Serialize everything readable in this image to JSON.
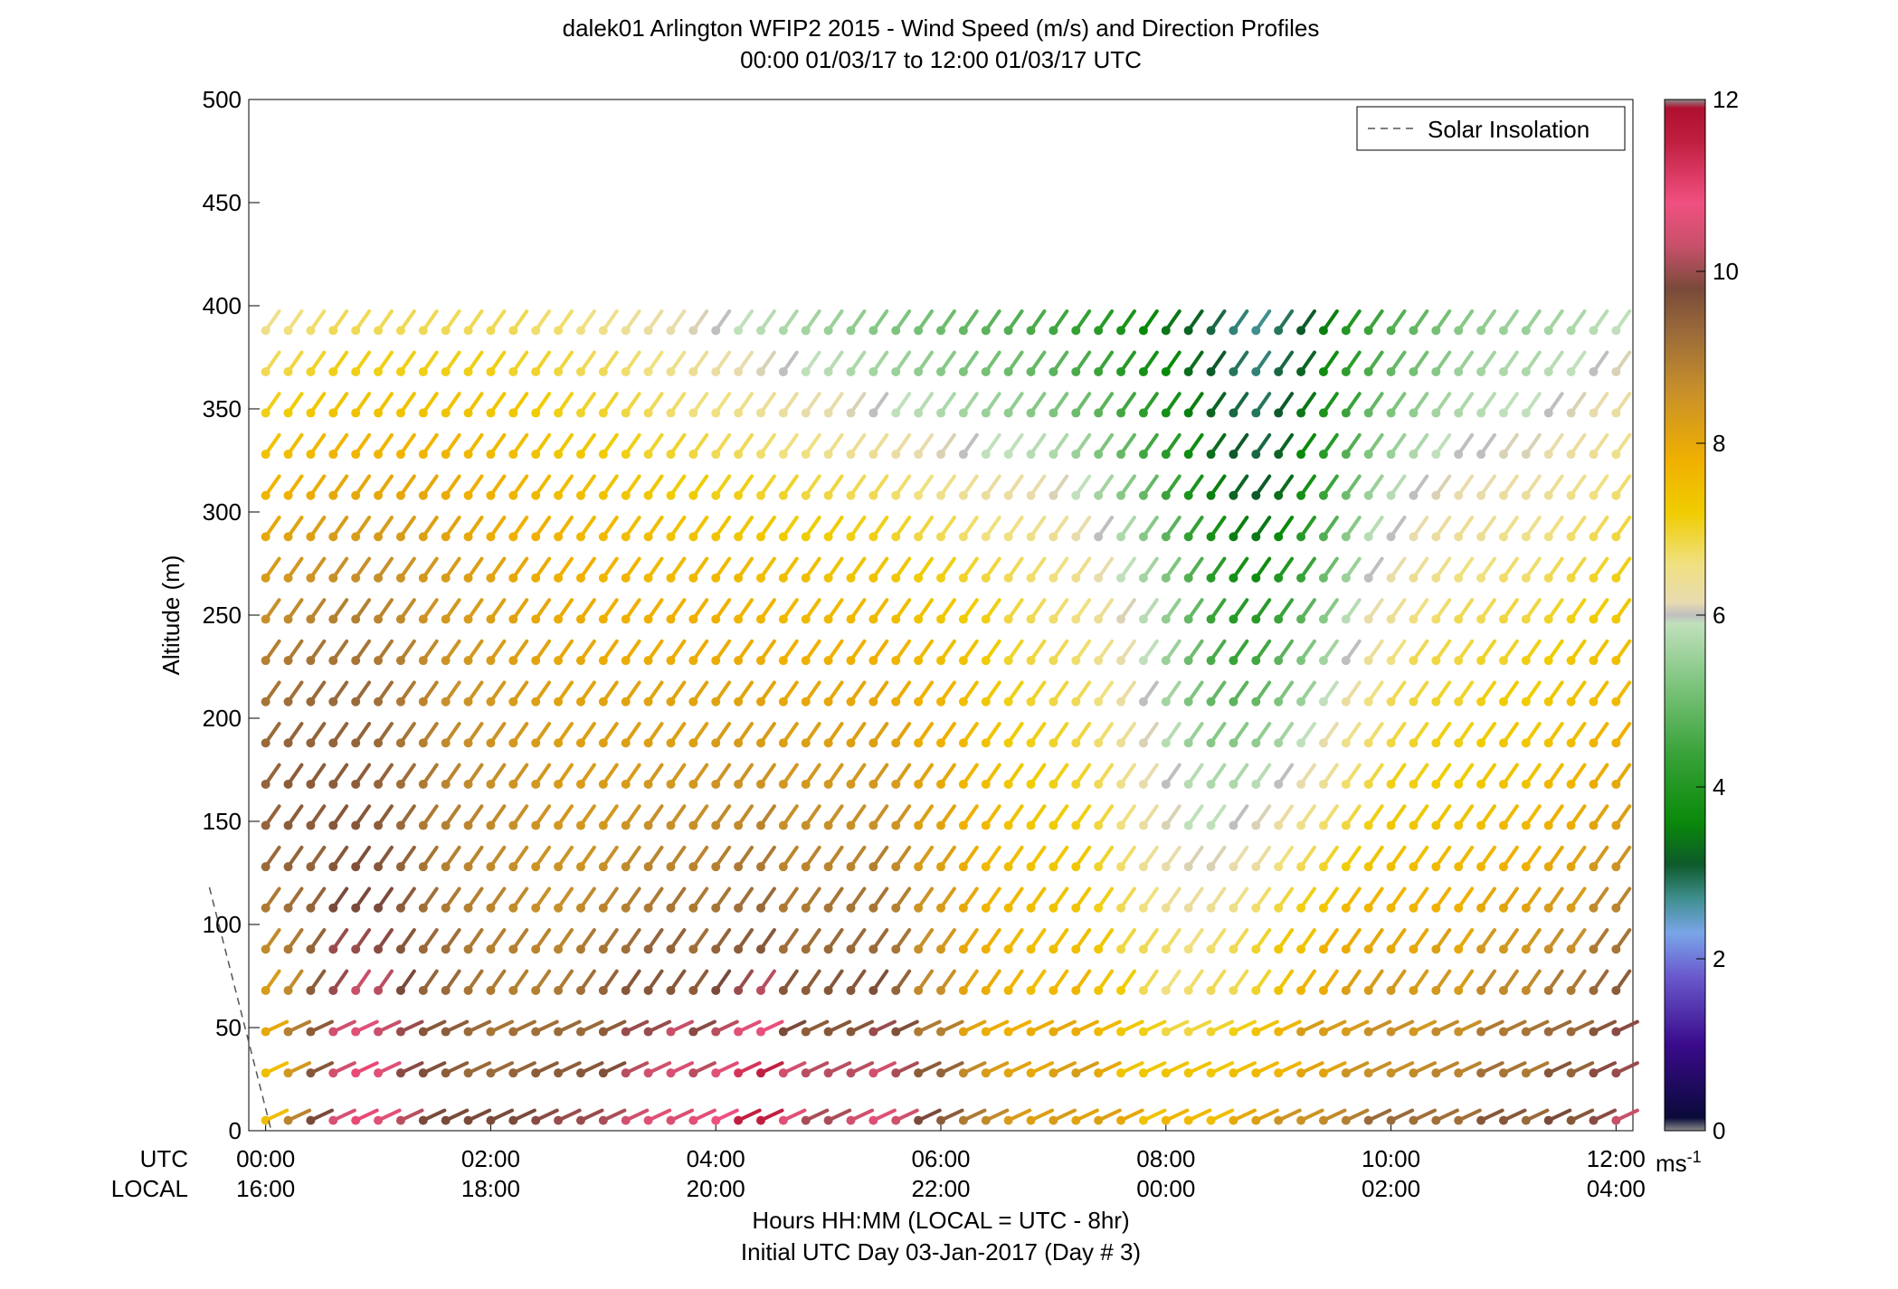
{
  "chart_data": {
    "type": "wind barb profile",
    "title": "dalek01 Arlington WFIP2 2015 - Wind Speed (m/s) and Direction Profiles",
    "subtitle": "00:00 01/03/17 to 12:00 01/03/17  UTC",
    "ylabel": "Altitude (m)",
    "xlabel": "Hours HH:MM  (LOCAL = UTC - 8hr)",
    "xlabel2": "Initial UTC Day 03-Jan-2017 (Day # 3)",
    "ylim": [
      0,
      500
    ],
    "xlim_hours": [
      -0.15,
      12.15
    ],
    "yticks": [
      0,
      50,
      100,
      150,
      200,
      250,
      300,
      350,
      400,
      450,
      500
    ],
    "xticks_hours": [
      0,
      2,
      4,
      6,
      8,
      10,
      12
    ],
    "xtick_labels_utc": [
      "00:00",
      "02:00",
      "04:00",
      "06:00",
      "08:00",
      "10:00",
      "12:00"
    ],
    "xtick_labels_local": [
      "16:00",
      "18:00",
      "20:00",
      "22:00",
      "00:00",
      "02:00",
      "04:00"
    ],
    "row_labels": {
      "utc": "UTC",
      "local": "LOCAL"
    },
    "legend": {
      "label": "Solar Insolation",
      "position": "top-right"
    },
    "solar_insolation_line": {
      "x_hours": [
        -0.5,
        0.05
      ],
      "y_m": [
        118,
        0
      ]
    },
    "colorbar": {
      "label": "ms",
      "label_exponent": "-1",
      "range": [
        0,
        12
      ],
      "ticks": [
        0,
        2,
        4,
        6,
        8,
        10,
        12
      ],
      "stops": [
        {
          "v": 0.0,
          "c": "#8c8c8c"
        },
        {
          "v": 0.15,
          "c": "#0a0a3a"
        },
        {
          "v": 1.0,
          "c": "#3a0a8c"
        },
        {
          "v": 1.8,
          "c": "#6a5acd"
        },
        {
          "v": 2.3,
          "c": "#7aa5e8"
        },
        {
          "v": 2.7,
          "c": "#3f8f8f"
        },
        {
          "v": 3.1,
          "c": "#0d5a2a"
        },
        {
          "v": 3.6,
          "c": "#0a8a0a"
        },
        {
          "v": 4.4,
          "c": "#3aa33a"
        },
        {
          "v": 5.2,
          "c": "#7ec47e"
        },
        {
          "v": 5.9,
          "c": "#c0e0bc"
        },
        {
          "v": 6.0,
          "c": "#bfbfbf"
        },
        {
          "v": 6.15,
          "c": "#e8dcb0"
        },
        {
          "v": 6.6,
          "c": "#f0e080"
        },
        {
          "v": 7.2,
          "c": "#f0cc00"
        },
        {
          "v": 7.8,
          "c": "#f0b000"
        },
        {
          "v": 8.6,
          "c": "#c8902a"
        },
        {
          "v": 9.3,
          "c": "#9a6a3a"
        },
        {
          "v": 9.8,
          "c": "#7a4a3a"
        },
        {
          "v": 10.3,
          "c": "#c8506a"
        },
        {
          "v": 10.8,
          "c": "#f05080"
        },
        {
          "v": 11.5,
          "c": "#c02040"
        },
        {
          "v": 11.9,
          "c": "#b01030"
        },
        {
          "v": 12.0,
          "c": "#8c8c8c"
        }
      ]
    },
    "altitudes_m": [
      5,
      28,
      48,
      68,
      88,
      108,
      128,
      148,
      168,
      188,
      208,
      228,
      248,
      268,
      288,
      308,
      328,
      348,
      368,
      388
    ],
    "speed_grid_ms": [
      [
        7.5,
        8.8,
        9.8,
        10.5,
        10.9,
        10.6,
        10.2,
        9.8,
        9.8,
        9.8,
        9.8,
        9.8,
        9.9,
        10.0,
        10.0,
        10.1,
        10.4,
        10.6,
        10.5,
        10.6,
        10.8,
        11.5,
        11.5,
        10.6,
        10.1,
        10.1,
        10.4,
        10.6,
        10.4,
        9.8,
        9.5,
        9.0,
        8.7,
        8.3,
        8.2,
        8.3,
        8.1,
        8.2,
        8.0,
        7.4,
        7.7,
        7.6,
        7.5,
        8.0,
        8.2,
        8.5,
        8.5,
        8.7,
        8.9,
        9.3,
        9.3,
        9.2,
        9.2,
        9.2,
        9.6,
        9.6,
        9.3,
        9.8,
        9.6,
        9.9,
        10.3
      ],
      [
        7.5,
        8.4,
        9.6,
        10.4,
        10.9,
        10.6,
        9.9,
        9.7,
        9.5,
        9.3,
        9.3,
        9.4,
        9.5,
        9.5,
        9.6,
        9.7,
        10.2,
        10.4,
        10.5,
        10.2,
        10.6,
        11.2,
        11.5,
        10.4,
        10.2,
        10.2,
        10.2,
        10.4,
        10.1,
        9.5,
        9.4,
        8.7,
        8.3,
        8.1,
        8.0,
        8.2,
        8.3,
        8.0,
        7.4,
        7.3,
        7.4,
        7.4,
        7.3,
        7.5,
        7.6,
        7.7,
        8.1,
        8.1,
        8.5,
        8.6,
        8.6,
        8.7,
        8.8,
        8.8,
        9.2,
        9.1,
        9.0,
        9.6,
        9.4,
        9.9,
        10.0
      ],
      [
        8.0,
        8.9,
        9.5,
        10.4,
        10.6,
        10.3,
        10.0,
        9.6,
        9.5,
        9.3,
        9.1,
        9.2,
        9.2,
        9.3,
        9.3,
        9.5,
        10.0,
        10.0,
        10.3,
        9.9,
        10.2,
        10.6,
        10.7,
        9.8,
        9.5,
        9.6,
        9.6,
        10.0,
        9.7,
        9.0,
        8.9,
        8.1,
        7.9,
        7.8,
        7.9,
        8.0,
        7.9,
        7.6,
        7.3,
        7.1,
        6.9,
        6.9,
        7.0,
        7.1,
        7.4,
        7.7,
        8.3,
        8.3,
        8.3,
        8.6,
        8.6,
        8.4,
        8.7,
        8.6,
        9.0,
        9.0,
        9.1,
        9.3,
        9.3,
        9.6,
        9.9
      ],
      [
        8.3,
        8.7,
        9.5,
        10.0,
        10.3,
        10.2,
        9.8,
        9.4,
        9.3,
        9.1,
        9.0,
        8.9,
        8.9,
        9.0,
        9.2,
        9.4,
        9.6,
        9.6,
        9.6,
        9.5,
        9.8,
        10.0,
        10.2,
        9.6,
        9.5,
        9.6,
        9.6,
        9.7,
        9.4,
        8.7,
        8.6,
        8.1,
        7.9,
        7.7,
        7.5,
        7.6,
        7.7,
        7.4,
        7.2,
        6.8,
        6.6,
        6.7,
        6.8,
        6.8,
        7.0,
        7.4,
        7.7,
        7.9,
        8.2,
        8.3,
        8.4,
        8.3,
        8.4,
        8.3,
        8.7,
        8.7,
        8.7,
        9.0,
        9.0,
        9.3,
        9.5
      ],
      [
        8.7,
        9.0,
        9.4,
        10.0,
        10.0,
        9.9,
        9.6,
        9.3,
        9.2,
        9.0,
        8.9,
        8.9,
        8.8,
        8.8,
        9.0,
        9.1,
        9.2,
        9.4,
        9.4,
        9.2,
        9.4,
        9.5,
        9.6,
        9.2,
        9.2,
        9.3,
        9.3,
        9.3,
        9.1,
        8.6,
        8.4,
        8.0,
        7.8,
        7.6,
        7.5,
        7.5,
        7.5,
        7.3,
        6.9,
        6.8,
        6.7,
        6.6,
        6.7,
        6.8,
        7.0,
        7.3,
        7.4,
        7.8,
        7.9,
        8.0,
        8.0,
        8.0,
        8.2,
        8.0,
        8.4,
        8.4,
        8.4,
        8.6,
        8.6,
        9.0,
        9.1
      ],
      [
        9.0,
        9.2,
        9.4,
        9.8,
        9.8,
        9.8,
        9.5,
        9.2,
        9.0,
        8.9,
        8.8,
        8.7,
        8.6,
        8.6,
        8.7,
        8.8,
        8.9,
        9.0,
        9.1,
        9.0,
        9.1,
        9.2,
        9.3,
        9.0,
        9.0,
        9.1,
        9.1,
        9.1,
        8.9,
        8.5,
        8.3,
        8.0,
        7.7,
        7.6,
        7.5,
        7.4,
        7.4,
        7.1,
        6.8,
        6.6,
        6.4,
        6.3,
        6.4,
        6.5,
        6.7,
        6.9,
        7.1,
        7.3,
        7.6,
        7.7,
        7.7,
        7.7,
        7.8,
        7.8,
        8.0,
        8.1,
        8.1,
        8.3,
        8.3,
        8.7,
        8.8
      ],
      [
        9.3,
        9.4,
        9.4,
        9.6,
        9.7,
        9.6,
        9.4,
        9.1,
        8.9,
        8.8,
        8.7,
        8.6,
        8.5,
        8.5,
        8.5,
        8.6,
        8.7,
        8.8,
        8.8,
        8.8,
        8.9,
        9.0,
        9.0,
        8.8,
        8.8,
        8.8,
        8.8,
        8.9,
        8.7,
        8.3,
        8.2,
        7.9,
        7.6,
        7.5,
        7.4,
        7.3,
        7.3,
        7.0,
        6.7,
        6.4,
        6.2,
        6.1,
        6.1,
        6.2,
        6.3,
        6.6,
        6.8,
        7.0,
        7.2,
        7.4,
        7.5,
        7.5,
        7.6,
        7.6,
        7.7,
        7.8,
        7.8,
        8.0,
        8.1,
        8.4,
        8.5
      ],
      [
        9.4,
        9.5,
        9.5,
        9.6,
        9.6,
        9.5,
        9.3,
        9.0,
        8.9,
        8.8,
        8.7,
        8.6,
        8.5,
        8.4,
        8.4,
        8.4,
        8.5,
        8.6,
        8.6,
        8.6,
        8.7,
        8.7,
        8.8,
        8.6,
        8.6,
        8.6,
        8.6,
        8.6,
        8.5,
        8.2,
        8.1,
        7.8,
        7.6,
        7.4,
        7.3,
        7.2,
        7.1,
        6.9,
        6.6,
        6.3,
        6.1,
        5.9,
        5.9,
        6.0,
        6.1,
        6.3,
        6.5,
        6.7,
        6.9,
        7.1,
        7.3,
        7.3,
        7.4,
        7.4,
        7.5,
        7.6,
        7.6,
        7.8,
        7.9,
        8.1,
        8.2
      ],
      [
        9.4,
        9.5,
        9.5,
        9.5,
        9.5,
        9.4,
        9.2,
        9.0,
        8.8,
        8.7,
        8.6,
        8.5,
        8.4,
        8.3,
        8.3,
        8.3,
        8.3,
        8.4,
        8.4,
        8.4,
        8.5,
        8.5,
        8.5,
        8.4,
        8.4,
        8.4,
        8.4,
        8.4,
        8.3,
        8.1,
        8.0,
        7.7,
        7.5,
        7.3,
        7.2,
        7.1,
        7.0,
        6.8,
        6.5,
        6.2,
        6.0,
        5.8,
        5.7,
        5.7,
        5.8,
        6.0,
        6.2,
        6.4,
        6.7,
        6.9,
        7.1,
        7.1,
        7.2,
        7.2,
        7.3,
        7.4,
        7.4,
        7.6,
        7.7,
        7.9,
        8.0
      ],
      [
        9.3,
        9.4,
        9.4,
        9.4,
        9.4,
        9.3,
        9.1,
        8.9,
        8.7,
        8.6,
        8.5,
        8.4,
        8.3,
        8.2,
        8.2,
        8.2,
        8.2,
        8.2,
        8.2,
        8.2,
        8.3,
        8.3,
        8.3,
        8.2,
        8.2,
        8.2,
        8.2,
        8.2,
        8.1,
        7.9,
        7.8,
        7.6,
        7.4,
        7.2,
        7.1,
        7.0,
        6.9,
        6.7,
        6.4,
        6.1,
        5.8,
        5.5,
        5.3,
        5.3,
        5.4,
        5.6,
        5.9,
        6.2,
        6.5,
        6.7,
        6.9,
        7.0,
        7.1,
        7.1,
        7.2,
        7.3,
        7.3,
        7.4,
        7.5,
        7.7,
        7.8
      ],
      [
        9.1,
        9.2,
        9.3,
        9.3,
        9.3,
        9.2,
        9.0,
        8.8,
        8.6,
        8.5,
        8.4,
        8.3,
        8.2,
        8.1,
        8.1,
        8.1,
        8.1,
        8.1,
        8.1,
        8.1,
        8.1,
        8.1,
        8.1,
        8.0,
        8.0,
        8.0,
        8.0,
        8.0,
        7.9,
        7.8,
        7.7,
        7.5,
        7.3,
        7.1,
        7.0,
        6.9,
        6.8,
        6.6,
        6.3,
        6.0,
        5.6,
        5.2,
        4.9,
        4.8,
        4.9,
        5.2,
        5.5,
        5.9,
        6.3,
        6.6,
        6.8,
        6.9,
        7.0,
        7.0,
        7.1,
        7.2,
        7.2,
        7.3,
        7.4,
        7.5,
        7.6
      ],
      [
        8.9,
        9.0,
        9.1,
        9.1,
        9.1,
        9.0,
        8.9,
        8.7,
        8.5,
        8.4,
        8.3,
        8.2,
        8.1,
        8.0,
        8.0,
        7.9,
        7.9,
        7.9,
        7.9,
        7.9,
        7.9,
        7.9,
        7.9,
        7.8,
        7.8,
        7.8,
        7.8,
        7.8,
        7.7,
        7.6,
        7.5,
        7.4,
        7.2,
        7.0,
        6.9,
        6.8,
        6.7,
        6.5,
        6.2,
        5.9,
        5.5,
        5.0,
        4.6,
        4.4,
        4.5,
        4.8,
        5.2,
        5.6,
        6.0,
        6.4,
        6.6,
        6.8,
        6.9,
        6.9,
        7.0,
        7.0,
        7.1,
        7.2,
        7.3,
        7.4,
        7.5
      ],
      [
        8.6,
        8.7,
        8.8,
        8.9,
        8.9,
        8.8,
        8.7,
        8.5,
        8.4,
        8.3,
        8.2,
        8.1,
        8.0,
        7.9,
        7.9,
        7.8,
        7.8,
        7.8,
        7.8,
        7.8,
        7.8,
        7.7,
        7.7,
        7.6,
        7.6,
        7.6,
        7.6,
        7.6,
        7.5,
        7.4,
        7.3,
        7.2,
        7.1,
        6.9,
        6.8,
        6.7,
        6.6,
        6.4,
        6.1,
        5.8,
        5.4,
        4.9,
        4.4,
        4.1,
        4.1,
        4.4,
        4.8,
        5.3,
        5.8,
        6.2,
        6.4,
        6.6,
        6.7,
        6.8,
        6.8,
        6.9,
        6.9,
        7.0,
        7.1,
        7.2,
        7.3
      ],
      [
        8.3,
        8.4,
        8.5,
        8.6,
        8.6,
        8.6,
        8.5,
        8.4,
        8.3,
        8.2,
        8.1,
        8.0,
        7.9,
        7.8,
        7.8,
        7.7,
        7.7,
        7.6,
        7.6,
        7.6,
        7.6,
        7.6,
        7.5,
        7.5,
        7.5,
        7.4,
        7.4,
        7.4,
        7.3,
        7.2,
        7.1,
        7.0,
        6.9,
        6.8,
        6.7,
        6.6,
        6.5,
        6.2,
        5.9,
        5.6,
        5.2,
        4.7,
        4.1,
        3.8,
        3.7,
        4.0,
        4.4,
        5.0,
        5.5,
        6.0,
        6.2,
        6.4,
        6.5,
        6.6,
        6.6,
        6.7,
        6.7,
        6.8,
        6.9,
        7.0,
        7.1
      ],
      [
        8.0,
        8.1,
        8.2,
        8.3,
        8.3,
        8.3,
        8.3,
        8.2,
        8.1,
        8.0,
        7.9,
        7.8,
        7.8,
        7.7,
        7.6,
        7.6,
        7.5,
        7.5,
        7.4,
        7.4,
        7.4,
        7.3,
        7.3,
        7.2,
        7.2,
        7.2,
        7.1,
        7.1,
        7.0,
        6.9,
        6.8,
        6.7,
        6.6,
        6.6,
        6.5,
        6.4,
        6.2,
        6.0,
        5.7,
        5.3,
        4.8,
        4.3,
        3.8,
        3.5,
        3.4,
        3.6,
        4.1,
        4.7,
        5.3,
        5.8,
        6.0,
        6.2,
        6.3,
        6.4,
        6.4,
        6.5,
        6.5,
        6.6,
        6.7,
        6.8,
        6.9
      ],
      [
        7.7,
        7.8,
        7.9,
        8.0,
        8.0,
        8.0,
        8.0,
        8.0,
        7.9,
        7.8,
        7.8,
        7.7,
        7.6,
        7.5,
        7.5,
        7.4,
        7.3,
        7.3,
        7.2,
        7.2,
        7.1,
        7.1,
        7.0,
        7.0,
        6.9,
        6.9,
        6.8,
        6.8,
        6.7,
        6.6,
        6.5,
        6.4,
        6.3,
        6.3,
        6.2,
        6.1,
        5.9,
        5.6,
        5.3,
        4.9,
        4.4,
        3.9,
        3.5,
        3.2,
        3.1,
        3.3,
        3.8,
        4.4,
        5.0,
        5.5,
        5.8,
        6.0,
        6.1,
        6.2,
        6.2,
        6.3,
        6.3,
        6.4,
        6.5,
        6.6,
        6.7
      ],
      [
        7.4,
        7.5,
        7.6,
        7.7,
        7.7,
        7.7,
        7.7,
        7.7,
        7.7,
        7.6,
        7.6,
        7.5,
        7.4,
        7.3,
        7.3,
        7.2,
        7.1,
        7.0,
        7.0,
        6.9,
        6.8,
        6.8,
        6.7,
        6.6,
        6.6,
        6.5,
        6.4,
        6.4,
        6.3,
        6.2,
        6.1,
        6.0,
        5.9,
        5.9,
        5.8,
        5.7,
        5.5,
        5.2,
        4.9,
        4.5,
        4.1,
        3.7,
        3.3,
        3.1,
        3.0,
        3.2,
        3.6,
        4.1,
        4.7,
        5.2,
        5.5,
        5.7,
        5.9,
        6.0,
        6.0,
        6.1,
        6.1,
        6.2,
        6.3,
        6.4,
        6.5
      ],
      [
        7.1,
        7.2,
        7.3,
        7.4,
        7.4,
        7.4,
        7.4,
        7.4,
        7.4,
        7.4,
        7.3,
        7.3,
        7.2,
        7.1,
        7.0,
        7.0,
        6.9,
        6.8,
        6.7,
        6.6,
        6.6,
        6.5,
        6.4,
        6.3,
        6.2,
        6.2,
        6.1,
        6.0,
        5.9,
        5.8,
        5.7,
        5.6,
        5.5,
        5.4,
        5.3,
        5.2,
        5.0,
        4.8,
        4.5,
        4.2,
        3.8,
        3.5,
        3.2,
        3.0,
        2.9,
        3.1,
        3.4,
        3.9,
        4.4,
        4.9,
        5.2,
        5.4,
        5.6,
        5.7,
        5.8,
        5.9,
        5.9,
        6.0,
        6.1,
        6.2,
        6.3
      ],
      [
        6.8,
        6.9,
        7.0,
        7.1,
        7.1,
        7.1,
        7.1,
        7.1,
        7.1,
        7.1,
        7.1,
        7.0,
        7.0,
        6.9,
        6.8,
        6.8,
        6.7,
        6.6,
        6.5,
        6.4,
        6.3,
        6.2,
        6.1,
        6.0,
        5.9,
        5.8,
        5.7,
        5.6,
        5.5,
        5.4,
        5.3,
        5.2,
        5.1,
        5.0,
        4.9,
        4.8,
        4.6,
        4.4,
        4.1,
        3.8,
        3.6,
        3.3,
        3.1,
        2.9,
        2.8,
        3.0,
        3.2,
        3.7,
        4.2,
        4.6,
        4.9,
        5.1,
        5.3,
        5.5,
        5.6,
        5.7,
        5.7,
        5.8,
        5.9,
        6.0,
        6.1
      ],
      [
        6.5,
        6.6,
        6.7,
        6.8,
        6.8,
        6.8,
        6.8,
        6.8,
        6.8,
        6.8,
        6.8,
        6.8,
        6.7,
        6.7,
        6.6,
        6.5,
        6.4,
        6.3,
        6.2,
        6.1,
        6.0,
        5.9,
        5.8,
        5.7,
        5.6,
        5.5,
        5.4,
        5.3,
        5.2,
        5.1,
        5.0,
        4.9,
        4.8,
        4.7,
        4.6,
        4.5,
        4.3,
        4.1,
        3.9,
        3.6,
        3.4,
        3.2,
        3.0,
        2.8,
        2.7,
        2.9,
        3.1,
        3.5,
        4.0,
        4.4,
        4.7,
        4.9,
        5.1,
        5.3,
        5.4,
        5.5,
        5.5,
        5.6,
        5.7,
        5.8,
        5.9
      ]
    ],
    "direction_grid_deg": "mostly from southwest (barbs pointing NE) in upper levels, veering to west-southwest near surface"
  }
}
